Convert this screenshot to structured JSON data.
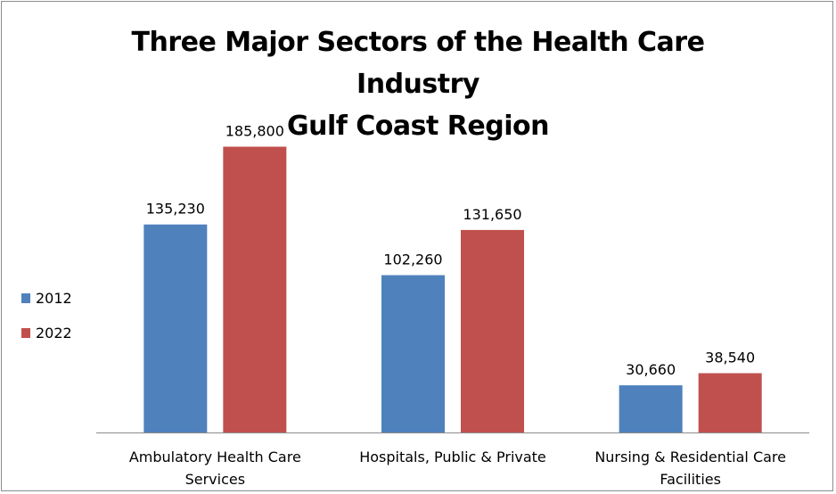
{
  "chart_data": {
    "type": "bar",
    "title": [
      "Three Major Sectors of the Health Care",
      "Industry",
      "Gulf Coast Region"
    ],
    "categories": [
      [
        "Ambulatory Health Care",
        "Services"
      ],
      [
        "Hospitals, Public & Private"
      ],
      [
        "Nursing & Residential Care",
        "Facilities"
      ]
    ],
    "series": [
      {
        "name": "2012",
        "color": "#4f81bd",
        "values": [
          135230,
          102260,
          30660
        ],
        "labels": [
          "135,230",
          "102,260",
          "30,660"
        ]
      },
      {
        "name": "2022",
        "color": "#c0504d",
        "values": [
          185800,
          131650,
          38540
        ],
        "labels": [
          "185,800",
          "131,650",
          "38,540"
        ]
      }
    ],
    "ylim": [
      0,
      200000
    ],
    "grid": false,
    "legend": "left",
    "data_labels": true
  }
}
